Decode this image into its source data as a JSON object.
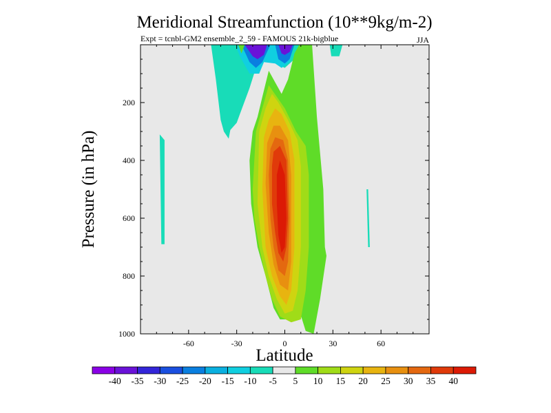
{
  "chart_data": {
    "type": "contour",
    "title": "Meridional Streamfunction (10**9kg/m-2)",
    "subtitle": "Expt = tcnbl-GM2 ensemble_2_59 - FAMOUS 21k-bigblue",
    "season": "JJA",
    "xlabel": "Latitude",
    "ylabel": "Pressure (in hPa)",
    "xlim": [
      -90,
      90
    ],
    "ylim": [
      1000,
      0
    ],
    "x_ticks": [
      -60,
      -30,
      0,
      30,
      60
    ],
    "y_ticks": [
      200,
      400,
      600,
      800,
      1000
    ],
    "colorbar": {
      "labels": [
        -40,
        -35,
        -30,
        -25,
        -20,
        -15,
        -10,
        -5,
        5,
        10,
        15,
        20,
        25,
        30,
        35,
        40
      ],
      "colors": [
        "#8a00e6",
        "#6a12d8",
        "#3325d9",
        "#1a4fe0",
        "#0a7fe0",
        "#0ab0e0",
        "#10cfe0",
        "#18dcb8",
        "#e8e8e8",
        "#5fdc28",
        "#a0dc18",
        "#cfd410",
        "#e8b410",
        "#e89010",
        "#e46810",
        "#e03a0a",
        "#dc1a05"
      ]
    },
    "contours": [
      {
        "level": -5,
        "pts": [
          [
            -78,
            310
          ],
          [
            -75,
            330
          ],
          [
            -75,
            690
          ],
          [
            -77,
            690
          ]
        ]
      },
      {
        "level": -5,
        "pts": [
          [
            -46,
            0
          ],
          [
            -43,
            120
          ],
          [
            -40,
            260
          ],
          [
            -38,
            300
          ],
          [
            -35,
            325
          ],
          [
            -34,
            295
          ],
          [
            -30,
            270
          ],
          [
            -28,
            240
          ],
          [
            -22,
            150
          ],
          [
            -18,
            80
          ],
          [
            -14,
            40
          ],
          [
            -8,
            50
          ],
          [
            -4,
            70
          ],
          [
            0,
            80
          ],
          [
            5,
            55
          ],
          [
            9,
            30
          ],
          [
            12,
            0
          ]
        ]
      },
      {
        "level": -10,
        "pts": [
          [
            -31,
            0
          ],
          [
            -28,
            40
          ],
          [
            -22,
            100
          ],
          [
            -16,
            100
          ],
          [
            -13,
            60
          ],
          [
            -6,
            65
          ],
          [
            -2,
            80
          ],
          [
            3,
            60
          ],
          [
            6,
            0
          ]
        ]
      },
      {
        "level": -20,
        "pts": [
          [
            -27,
            0
          ],
          [
            -22,
            60
          ],
          [
            -18,
            80
          ],
          [
            -14,
            60
          ],
          [
            -9,
            0
          ]
        ]
      },
      {
        "level": -20,
        "pts": [
          [
            -6,
            0
          ],
          [
            -4,
            50
          ],
          [
            0,
            65
          ],
          [
            3,
            50
          ],
          [
            6,
            0
          ]
        ]
      },
      {
        "level": -35,
        "pts": [
          [
            -25,
            0
          ],
          [
            -20,
            40
          ],
          [
            -17,
            50
          ],
          [
            -13,
            35
          ],
          [
            -11,
            0
          ]
        ]
      },
      {
        "level": -35,
        "pts": [
          [
            -4,
            0
          ],
          [
            -2,
            30
          ],
          [
            0,
            35
          ],
          [
            3,
            25
          ],
          [
            5,
            0
          ]
        ]
      },
      {
        "level": -5,
        "pts": [
          [
            -32,
            0
          ],
          [
            -30,
            25
          ],
          [
            -29,
            0
          ]
        ]
      },
      {
        "level": -5,
        "pts": [
          [
            28,
            0
          ],
          [
            29,
            40
          ],
          [
            34,
            40
          ],
          [
            36,
            0
          ]
        ]
      },
      {
        "level": -5,
        "pts": [
          [
            51,
            500
          ],
          [
            52,
            700
          ],
          [
            53,
            700
          ],
          [
            52,
            500
          ]
        ]
      },
      {
        "level": 5,
        "pts": [
          [
            -29,
            0
          ],
          [
            -27,
            30
          ],
          [
            -25,
            0
          ]
        ]
      },
      {
        "level": 5,
        "pts": [
          [
            -22,
            400
          ],
          [
            -20,
            300
          ],
          [
            -17,
            250
          ],
          [
            -14,
            180
          ],
          [
            -10,
            90
          ],
          [
            -6,
            130
          ],
          [
            -2,
            170
          ],
          [
            2,
            120
          ],
          [
            6,
            30
          ],
          [
            9,
            0
          ],
          [
            17,
            0
          ],
          [
            20,
            250
          ],
          [
            24,
            500
          ],
          [
            25,
            700
          ],
          [
            26,
            730
          ],
          [
            22,
            880
          ],
          [
            18,
            1000
          ],
          [
            13,
            990
          ],
          [
            8,
            900
          ],
          [
            2,
            950
          ],
          [
            -3,
            950
          ],
          [
            -7,
            910
          ],
          [
            -12,
            800
          ],
          [
            -17,
            700
          ],
          [
            -21,
            550
          ]
        ]
      },
      {
        "level": 10,
        "pts": [
          [
            -20,
            500
          ],
          [
            -18,
            300
          ],
          [
            -15,
            240
          ],
          [
            -10,
            140
          ],
          [
            -5,
            180
          ],
          [
            0,
            220
          ],
          [
            7,
            300
          ],
          [
            13,
            350
          ],
          [
            15,
            450
          ],
          [
            15,
            700
          ],
          [
            13,
            850
          ],
          [
            10,
            950
          ],
          [
            4,
            960
          ],
          [
            -3,
            940
          ],
          [
            -8,
            880
          ],
          [
            -12,
            800
          ],
          [
            -16,
            700
          ],
          [
            -19,
            600
          ]
        ]
      },
      {
        "level": 15,
        "pts": [
          [
            -17,
            550
          ],
          [
            -16,
            300
          ],
          [
            -12,
            220
          ],
          [
            -8,
            170
          ],
          [
            -4,
            200
          ],
          [
            2,
            260
          ],
          [
            8,
            330
          ],
          [
            10,
            420
          ],
          [
            10,
            700
          ],
          [
            8,
            850
          ],
          [
            5,
            920
          ],
          [
            0,
            930
          ],
          [
            -5,
            880
          ],
          [
            -10,
            800
          ],
          [
            -14,
            700
          ]
        ]
      },
      {
        "level": 20,
        "pts": [
          [
            -14,
            500
          ],
          [
            -13,
            320
          ],
          [
            -10,
            260
          ],
          [
            -6,
            220
          ],
          [
            -2,
            240
          ],
          [
            3,
            300
          ],
          [
            6,
            400
          ],
          [
            6,
            700
          ],
          [
            4,
            850
          ],
          [
            1,
            900
          ],
          [
            -3,
            870
          ],
          [
            -8,
            800
          ],
          [
            -12,
            700
          ]
        ]
      },
      {
        "level": 25,
        "pts": [
          [
            -12,
            480
          ],
          [
            -11,
            340
          ],
          [
            -7,
            280
          ],
          [
            -3,
            280
          ],
          [
            2,
            330
          ],
          [
            4,
            450
          ],
          [
            4,
            750
          ],
          [
            2,
            850
          ],
          [
            -3,
            830
          ],
          [
            -7,
            760
          ],
          [
            -10,
            650
          ]
        ]
      },
      {
        "level": 30,
        "pts": [
          [
            -10,
            450
          ],
          [
            -9,
            360
          ],
          [
            -6,
            320
          ],
          [
            -1,
            330
          ],
          [
            2,
            400
          ],
          [
            3,
            600
          ],
          [
            2,
            750
          ],
          [
            0,
            800
          ],
          [
            -4,
            780
          ],
          [
            -7,
            700
          ],
          [
            -9,
            600
          ]
        ]
      },
      {
        "level": 35,
        "pts": [
          [
            -8,
            420
          ],
          [
            -7,
            370
          ],
          [
            -3,
            350
          ],
          [
            1,
            400
          ],
          [
            2,
            600
          ],
          [
            1,
            700
          ],
          [
            -1,
            750
          ],
          [
            -4,
            720
          ],
          [
            -6,
            650
          ],
          [
            -8,
            550
          ]
        ]
      },
      {
        "level": 40,
        "pts": [
          [
            -5,
            450
          ],
          [
            -3,
            400
          ],
          [
            0,
            450
          ],
          [
            1,
            600
          ],
          [
            0,
            700
          ],
          [
            -2,
            720
          ],
          [
            -4,
            660
          ],
          [
            -5,
            550
          ]
        ]
      }
    ]
  }
}
